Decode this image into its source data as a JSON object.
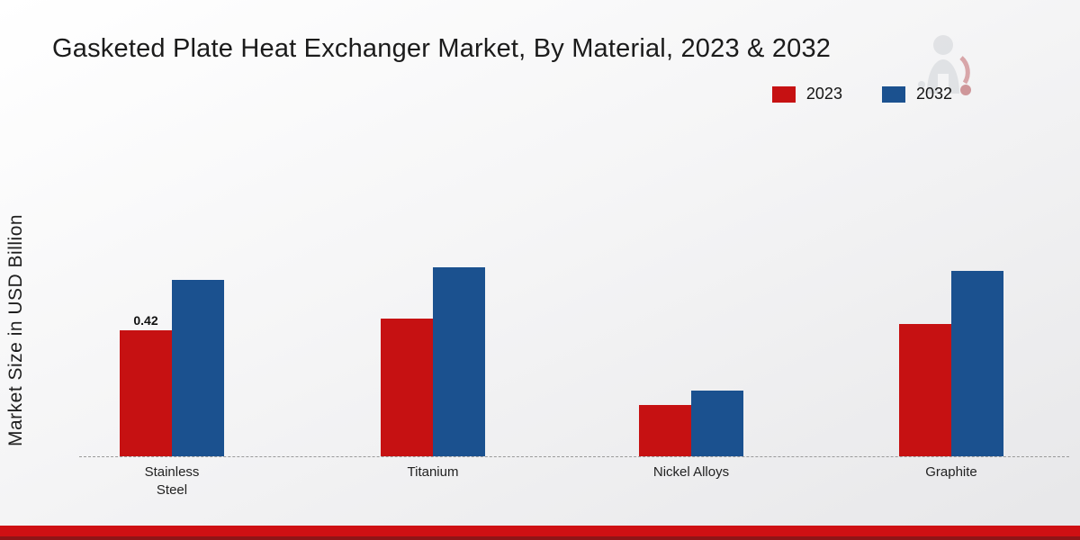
{
  "title": "Gasketed Plate Heat Exchanger Market, By Material, 2023 & 2032",
  "y_axis_label": "Market Size in USD Billion",
  "legend": [
    {
      "label": "2023",
      "color": "#c61112"
    },
    {
      "label": "2032",
      "color": "#1b518f"
    }
  ],
  "colors": {
    "footer_red": "#cf1013",
    "footer_dark_red": "#8e1517"
  },
  "watermark_icon": "company-logo-watermark",
  "chart_data": {
    "type": "bar",
    "title": "Gasketed Plate Heat Exchanger Market, By Material, 2023 & 2032",
    "xlabel": "",
    "ylabel": "Market Size in USD Billion",
    "categories": [
      "Stainless Steel",
      "Titanium",
      "Nickel Alloys",
      "Graphite"
    ],
    "series": [
      {
        "name": "2023",
        "color": "#c61112",
        "values": [
          0.42,
          0.46,
          0.17,
          0.44
        ]
      },
      {
        "name": "2032",
        "color": "#1b518f",
        "values": [
          0.59,
          0.63,
          0.22,
          0.62
        ]
      }
    ],
    "value_labels": {
      "2023": [
        "0.42",
        "",
        "",
        ""
      ],
      "2032": [
        "",
        "",
        "",
        ""
      ]
    },
    "ylim": [
      0,
      0.7
    ],
    "grid": false,
    "baseline_style": "dashed",
    "legend_position": "top-right"
  }
}
